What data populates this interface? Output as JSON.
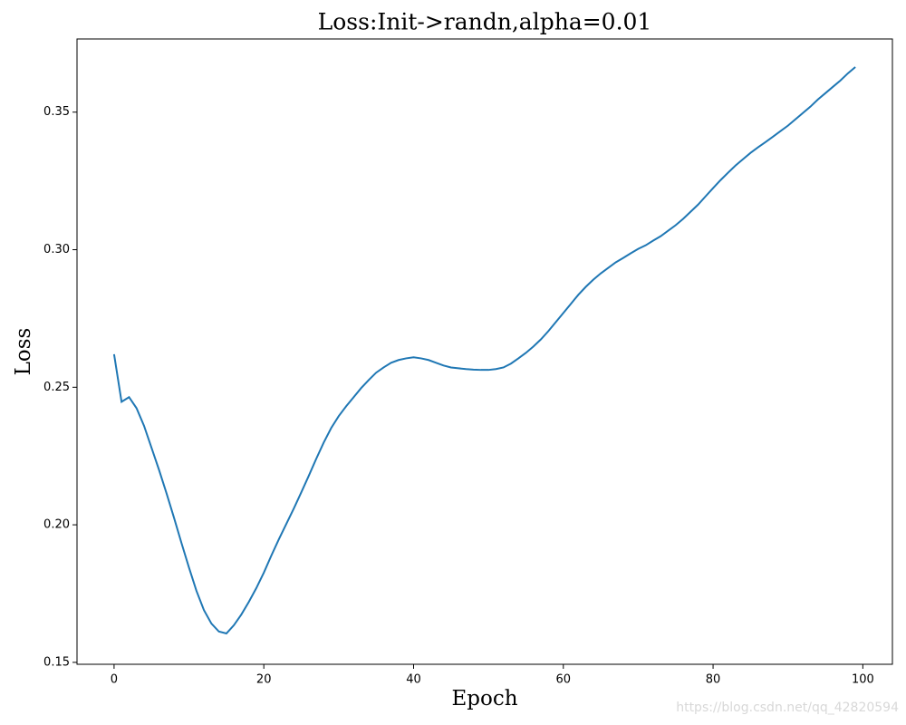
{
  "chart_data": {
    "type": "line",
    "title": "Loss:Init->randn,alpha=0.01",
    "x_label": "Epoch",
    "y_label": "Loss",
    "watermark": "https://blog.csdn.net/qq_42820594",
    "x": [
      0,
      1,
      2,
      3,
      4,
      5,
      6,
      7,
      8,
      9,
      10,
      11,
      12,
      13,
      14,
      15,
      16,
      17,
      18,
      19,
      20,
      21,
      22,
      23,
      24,
      25,
      26,
      27,
      28,
      29,
      30,
      31,
      32,
      33,
      34,
      35,
      36,
      37,
      38,
      39,
      40,
      41,
      42,
      43,
      44,
      45,
      46,
      47,
      48,
      49,
      50,
      51,
      52,
      53,
      54,
      55,
      56,
      57,
      58,
      59,
      60,
      61,
      62,
      63,
      64,
      65,
      66,
      67,
      68,
      69,
      70,
      71,
      72,
      73,
      74,
      75,
      76,
      77,
      78,
      79,
      80,
      81,
      82,
      83,
      84,
      85,
      86,
      87,
      88,
      89,
      90,
      91,
      92,
      93,
      94,
      95,
      96,
      97,
      98,
      99
    ],
    "series": [
      {
        "name": "Loss",
        "color": "#1f77b4",
        "values": [
          0.262,
          0.2447,
          0.2464,
          0.2424,
          0.236,
          0.228,
          0.22,
          0.2115,
          0.2026,
          0.1934,
          0.1845,
          0.176,
          0.169,
          0.1641,
          0.1612,
          0.1605,
          0.1635,
          0.1674,
          0.172,
          0.177,
          0.1826,
          0.1888,
          0.1947,
          0.2003,
          0.2059,
          0.2118,
          0.2178,
          0.224,
          0.2299,
          0.2352,
          0.2395,
          0.2431,
          0.2464,
          0.2497,
          0.2526,
          0.2553,
          0.2572,
          0.2589,
          0.2599,
          0.2605,
          0.2609,
          0.2605,
          0.2599,
          0.2589,
          0.2579,
          0.2572,
          0.2569,
          0.2566,
          0.2564,
          0.2563,
          0.2563,
          0.2566,
          0.2572,
          0.2586,
          0.2605,
          0.2625,
          0.2648,
          0.2674,
          0.2704,
          0.2737,
          0.277,
          0.2803,
          0.2836,
          0.2865,
          0.2891,
          0.2914,
          0.2934,
          0.2954,
          0.297,
          0.2987,
          0.3003,
          0.3016,
          0.3033,
          0.3049,
          0.3069,
          0.3089,
          0.3112,
          0.3138,
          0.3164,
          0.3194,
          0.3224,
          0.3253,
          0.328,
          0.3306,
          0.3329,
          0.3352,
          0.3372,
          0.3391,
          0.3411,
          0.3431,
          0.3451,
          0.3474,
          0.3497,
          0.352,
          0.3546,
          0.3569,
          0.3592,
          0.3615,
          0.3641,
          0.3664
        ]
      }
    ],
    "xlim": [
      -4.95,
      103.95
    ],
    "xticks": [
      0,
      20,
      40,
      60,
      80,
      100
    ],
    "ylim": [
      0.1493,
      0.3766
    ],
    "yticks": [
      0.15,
      {
        "value": 0.2,
        "label": "0.20"
      },
      0.25,
      {
        "value": 0.3,
        "label": "0.30"
      },
      0.35
    ]
  }
}
